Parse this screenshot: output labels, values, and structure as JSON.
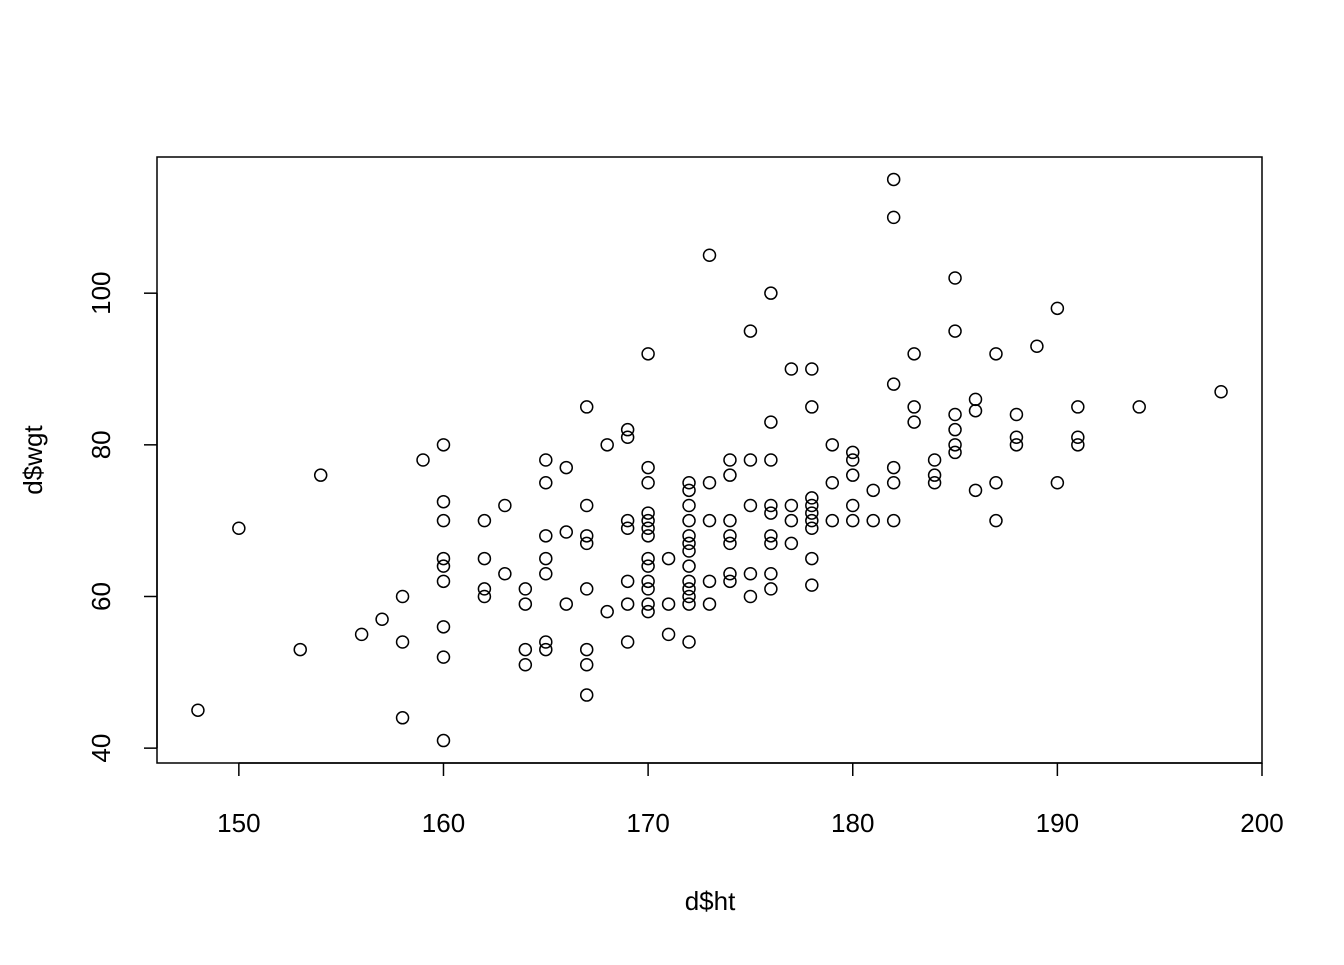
{
  "chart_data": {
    "type": "scatter",
    "x_label": "d$ht",
    "y_label": "d$wgt",
    "x": [
      148,
      150,
      153,
      154,
      156,
      157,
      158,
      158,
      158,
      159,
      160,
      160,
      160,
      160,
      160,
      160,
      160,
      160,
      160,
      162,
      162,
      162,
      162,
      163,
      163,
      164,
      164,
      164,
      164,
      165,
      165,
      165,
      165,
      165,
      165,
      165,
      166,
      166,
      166,
      167,
      167,
      167,
      167,
      167,
      167,
      167,
      167,
      168,
      168,
      169,
      169,
      169,
      169,
      169,
      169,
      169,
      170,
      170,
      170,
      170,
      170,
      170,
      170,
      170,
      170,
      170,
      170,
      170,
      170,
      171,
      171,
      171,
      172,
      172,
      172,
      172,
      172,
      172,
      172,
      172,
      172,
      172,
      172,
      172,
      172,
      173,
      173,
      173,
      173,
      173,
      174,
      174,
      174,
      174,
      174,
      174,
      174,
      175,
      175,
      175,
      175,
      175,
      176,
      176,
      176,
      176,
      176,
      176,
      176,
      176,
      176,
      177,
      177,
      177,
      177,
      178,
      178,
      178,
      178,
      178,
      178,
      178,
      178,
      178,
      179,
      179,
      179,
      180,
      180,
      180,
      180,
      180,
      181,
      181,
      182,
      182,
      182,
      182,
      182,
      182,
      183,
      183,
      183,
      184,
      184,
      184,
      185,
      185,
      185,
      185,
      185,
      185,
      186,
      186,
      186,
      187,
      187,
      187,
      188,
      188,
      188,
      189,
      190,
      190,
      191,
      191,
      191,
      194,
      198
    ],
    "y": [
      45,
      69,
      53,
      76,
      55,
      57,
      60,
      54,
      44,
      78,
      80,
      72.5,
      70,
      65,
      64,
      62,
      56,
      52,
      41,
      70,
      65,
      61,
      60,
      72,
      63,
      61,
      59,
      53,
      51,
      78,
      75,
      68,
      65,
      63,
      54,
      53,
      77,
      68.5,
      59,
      85,
      72,
      68,
      67,
      61,
      53,
      51,
      47,
      80,
      58,
      82,
      81,
      70,
      69,
      62,
      59,
      54,
      92,
      77,
      75,
      71,
      70,
      69,
      68,
      65,
      64,
      62,
      61,
      59,
      58,
      65,
      59,
      55,
      75,
      74,
      72,
      70,
      68,
      67,
      66,
      64,
      62,
      61,
      60,
      59,
      54,
      105,
      75,
      70,
      62,
      59,
      78,
      76,
      70,
      68,
      67,
      63,
      62,
      95,
      78,
      72,
      63,
      60,
      100,
      83,
      78,
      72,
      71,
      68,
      67,
      63,
      61,
      90,
      72,
      70,
      67,
      90,
      85,
      73,
      72,
      71,
      70,
      69,
      65,
      61.5,
      80,
      75,
      70,
      79,
      78,
      76,
      72,
      70,
      74,
      70,
      115,
      110,
      88,
      77,
      75,
      70,
      92,
      85,
      83,
      78,
      76,
      75,
      102,
      95,
      84,
      82,
      80,
      79,
      86,
      84.5,
      74,
      92,
      75,
      70,
      84,
      81,
      80,
      93,
      98,
      75,
      85,
      81,
      80,
      85,
      87
    ],
    "xlim": [
      146,
      200
    ],
    "ylim": [
      38.04,
      117.96
    ],
    "xticks": [
      150,
      160,
      170,
      180,
      190,
      200
    ],
    "yticks": [
      40,
      60,
      80,
      100
    ],
    "color": "#000000"
  }
}
